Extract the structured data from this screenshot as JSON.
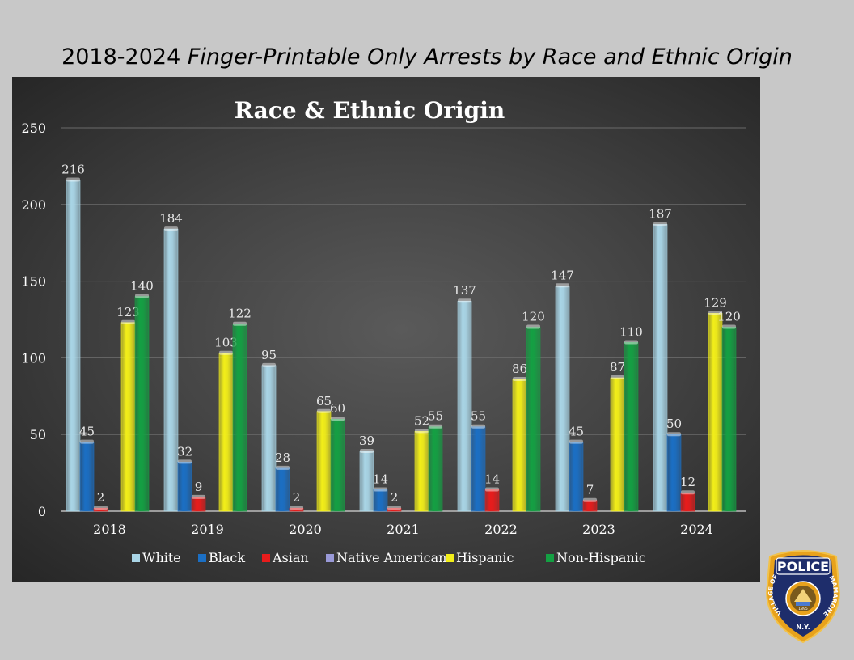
{
  "slide": {
    "title_prefix": "2018-2024 ",
    "title_italic": "Finger-Printable Only Arrests by Race and Ethnic Origin"
  },
  "logo": {
    "top_text": "POLICE",
    "left_arc": "VILLAGE OF",
    "right_arc": "MAMARONECK",
    "bottom_text": "N.Y.",
    "year": "1895"
  },
  "chart_data": {
    "type": "bar",
    "title": "Race & Ethnic Origin",
    "categories": [
      "2018",
      "2019",
      "2020",
      "2021",
      "2022",
      "2023",
      "2024"
    ],
    "ylim": [
      0,
      250
    ],
    "yticks": [
      0,
      50,
      100,
      150,
      200,
      250
    ],
    "grid": true,
    "legend_position": "bottom",
    "series": [
      {
        "name": "White",
        "color": "#a9d5e6",
        "values": [
          216,
          184,
          95,
          39,
          137,
          147,
          187
        ]
      },
      {
        "name": "Black",
        "color": "#1b6fc4",
        "values": [
          45,
          32,
          28,
          14,
          55,
          45,
          50
        ]
      },
      {
        "name": "Asian",
        "color": "#e81c1c",
        "values": [
          2,
          9,
          2,
          2,
          14,
          7,
          12
        ]
      },
      {
        "name": "Native American",
        "color": "#9a9ad8",
        "values": [
          0,
          0,
          0,
          0,
          0,
          0,
          0
        ]
      },
      {
        "name": "Hispanic",
        "color": "#f2ee19",
        "values": [
          123,
          103,
          65,
          52,
          86,
          87,
          129
        ]
      },
      {
        "name": "Non-Hispanic",
        "color": "#14a043",
        "values": [
          140,
          122,
          60,
          55,
          120,
          110,
          120
        ]
      }
    ]
  }
}
